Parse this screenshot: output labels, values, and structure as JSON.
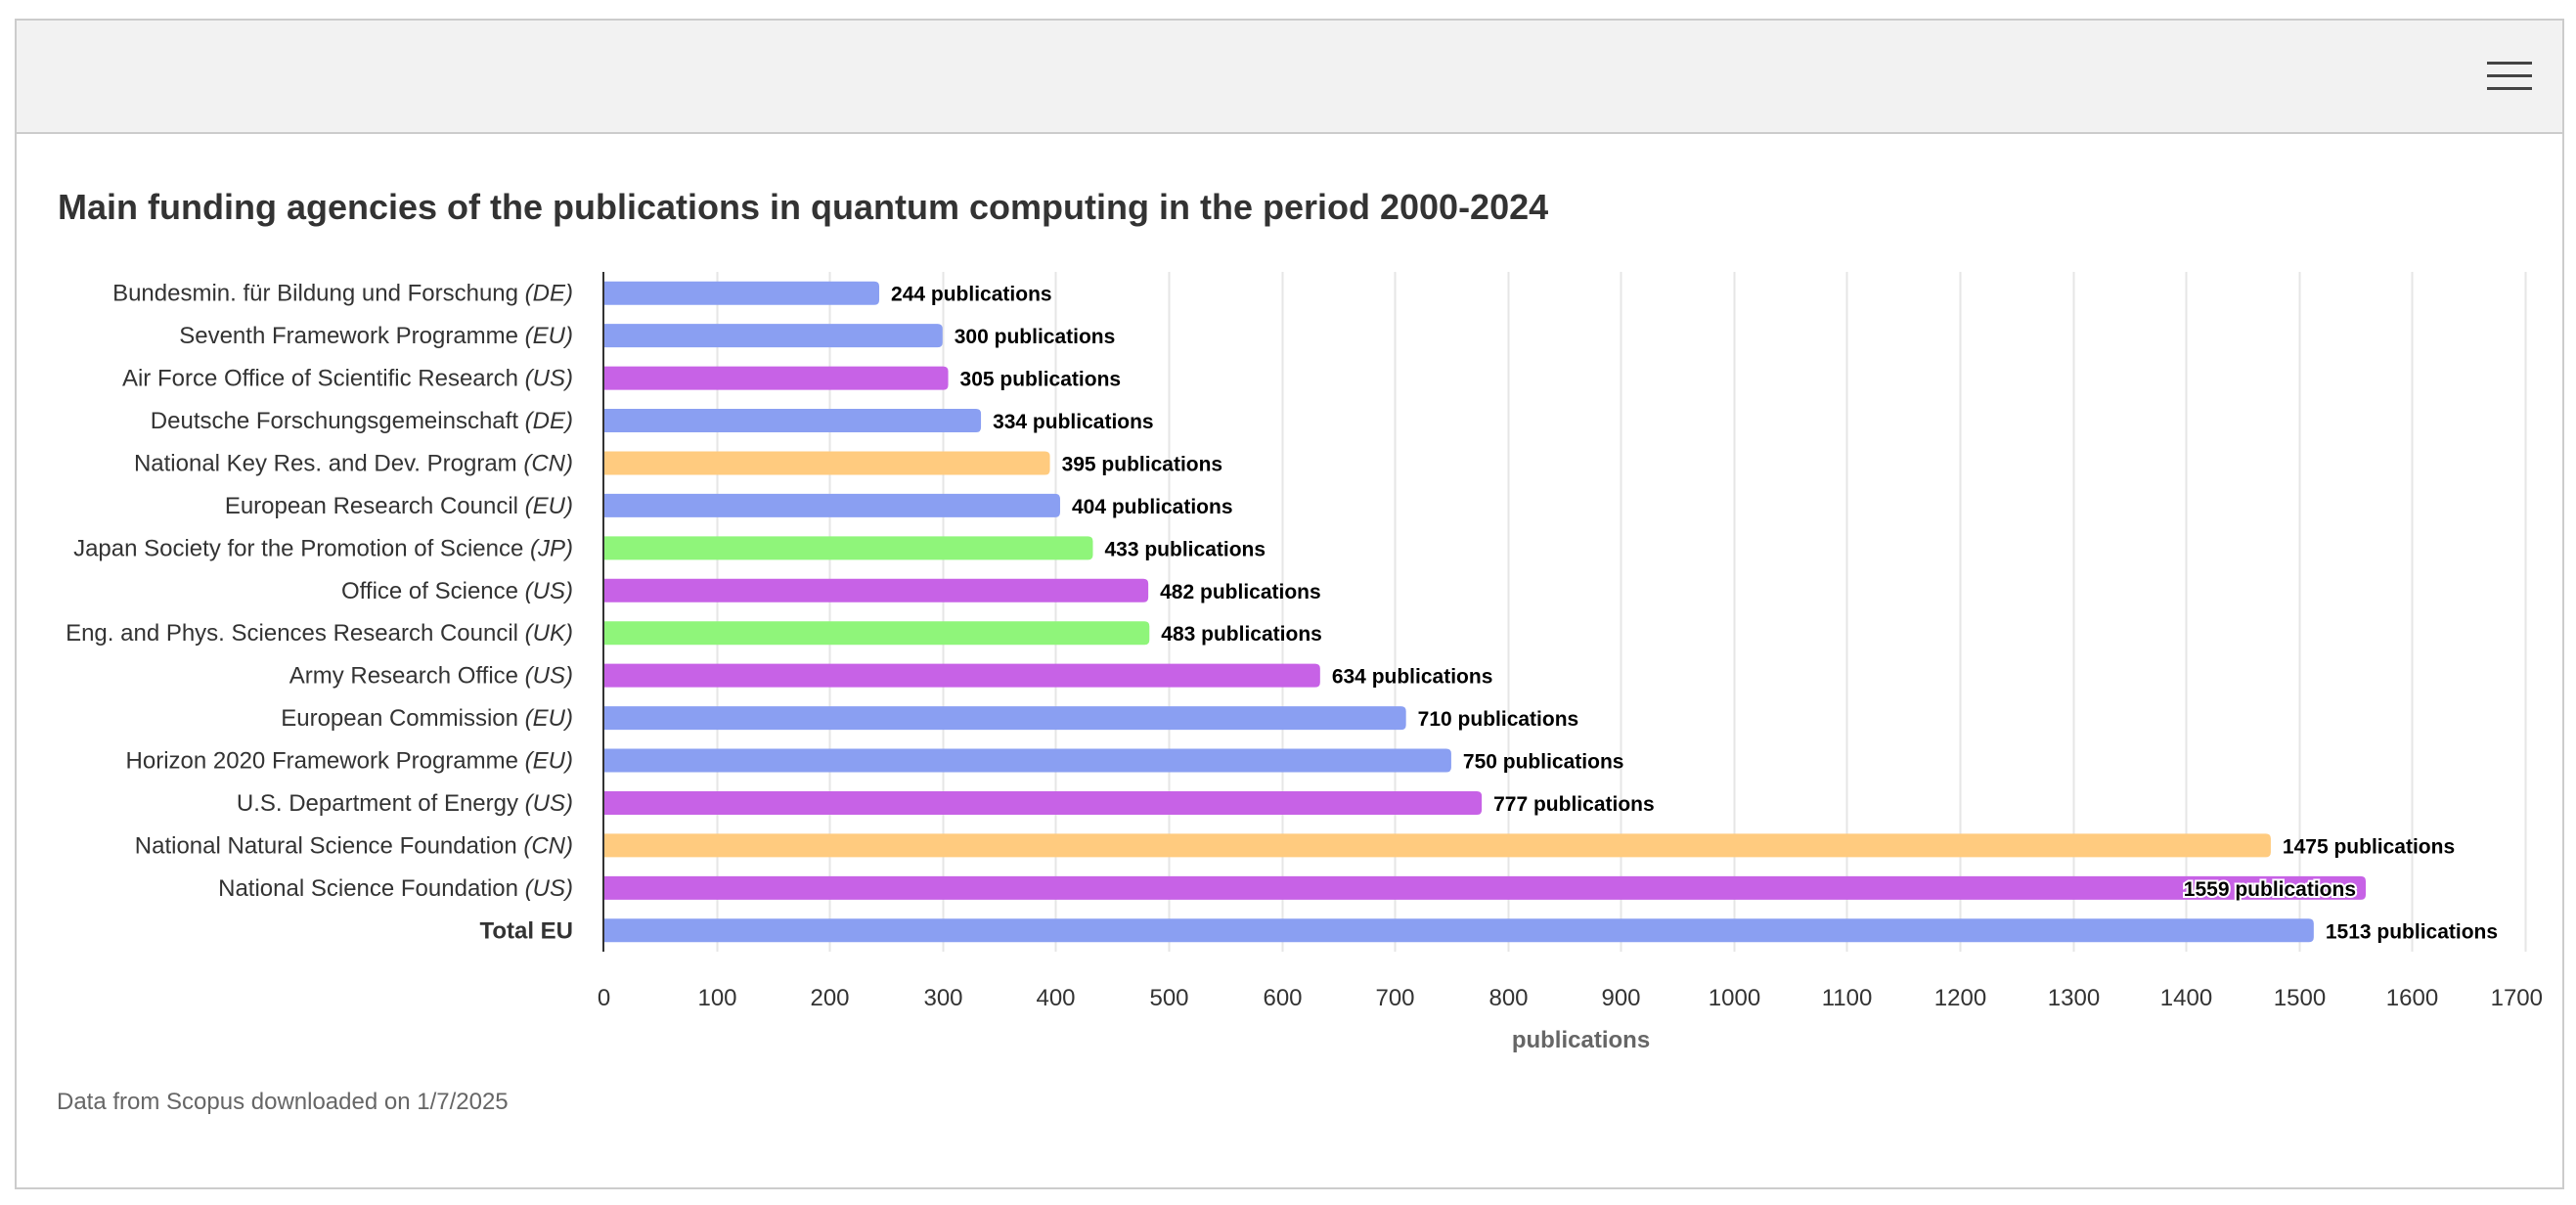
{
  "header": {
    "menu_icon": "hamburger-menu-icon"
  },
  "footer": {
    "note": "Data from Scopus downloaded on 1/7/2025"
  },
  "colors": {
    "EU": "#8a9ff2",
    "DE": "#8a9ff2",
    "US": "#c762e6",
    "CN": "#ffcb7f",
    "JP": "#8ff57a",
    "UK": "#8ff57a",
    "axis": "#333333",
    "grid": "#e6e6e6",
    "label": "#000000"
  },
  "chart_data": {
    "type": "bar",
    "orientation": "horizontal",
    "title": "Main funding agencies of the publications in quantum computing in the period 2000-2024",
    "xlabel": "publications",
    "ylabel": "",
    "xlim": [
      0,
      1700
    ],
    "xticks": [
      "0",
      "100",
      "200",
      "300",
      "400",
      "500",
      "600",
      "700",
      "800",
      "900",
      "1000",
      "1100",
      "1200",
      "1300",
      "1400",
      "1500",
      "1600",
      "1700"
    ],
    "grid": true,
    "legend": "none",
    "value_suffix": " publications",
    "categories": [
      {
        "name": "Bundesmin. für Bildung und Forschung",
        "country": "(DE)",
        "value": 244,
        "label": "244 publications",
        "bold": false
      },
      {
        "name": "Seventh Framework Programme",
        "country": "(EU)",
        "value": 300,
        "label": "300 publications",
        "bold": false
      },
      {
        "name": "Air Force Office of Scientific Research",
        "country": "(US)",
        "value": 305,
        "label": "305 publications",
        "bold": false
      },
      {
        "name": "Deutsche Forschungsgemeinschaft",
        "country": "(DE)",
        "value": 334,
        "label": "334 publications",
        "bold": false
      },
      {
        "name": "National Key Res. and Dev. Program",
        "country": "(CN)",
        "value": 395,
        "label": "395 publications",
        "bold": false
      },
      {
        "name": "European Research Council",
        "country": "(EU)",
        "value": 404,
        "label": "404 publications",
        "bold": false
      },
      {
        "name": "Japan Society for the Promotion of Science",
        "country": "(JP)",
        "value": 433,
        "label": "433 publications",
        "bold": false
      },
      {
        "name": "Office of Science",
        "country": "(US)",
        "value": 482,
        "label": "482 publications",
        "bold": false
      },
      {
        "name": "Eng. and Phys. Sciences Research Council",
        "country": "(UK)",
        "value": 483,
        "label": "483 publications",
        "bold": false
      },
      {
        "name": "Army Research Office",
        "country": "(US)",
        "value": 634,
        "label": "634 publications",
        "bold": false
      },
      {
        "name": "European Commission",
        "country": "(EU)",
        "value": 710,
        "label": "710 publications",
        "bold": false
      },
      {
        "name": "Horizon 2020 Framework Programme",
        "country": "(EU)",
        "value": 750,
        "label": "750 publications",
        "bold": false
      },
      {
        "name": "U.S. Department of Energy",
        "country": "(US)",
        "value": 777,
        "label": "777 publications",
        "bold": false
      },
      {
        "name": "National Natural Science Foundation",
        "country": "(CN)",
        "value": 1475,
        "label": "1475 publications",
        "bold": false
      },
      {
        "name": "National Science Foundation",
        "country": "(US)",
        "value": 1559,
        "label": "1559 publications",
        "bold": false,
        "label_inside": true
      },
      {
        "name": "Total EU",
        "country": "",
        "value": 1513,
        "label": "1513 publications",
        "bold": true,
        "group": "EU"
      }
    ]
  }
}
